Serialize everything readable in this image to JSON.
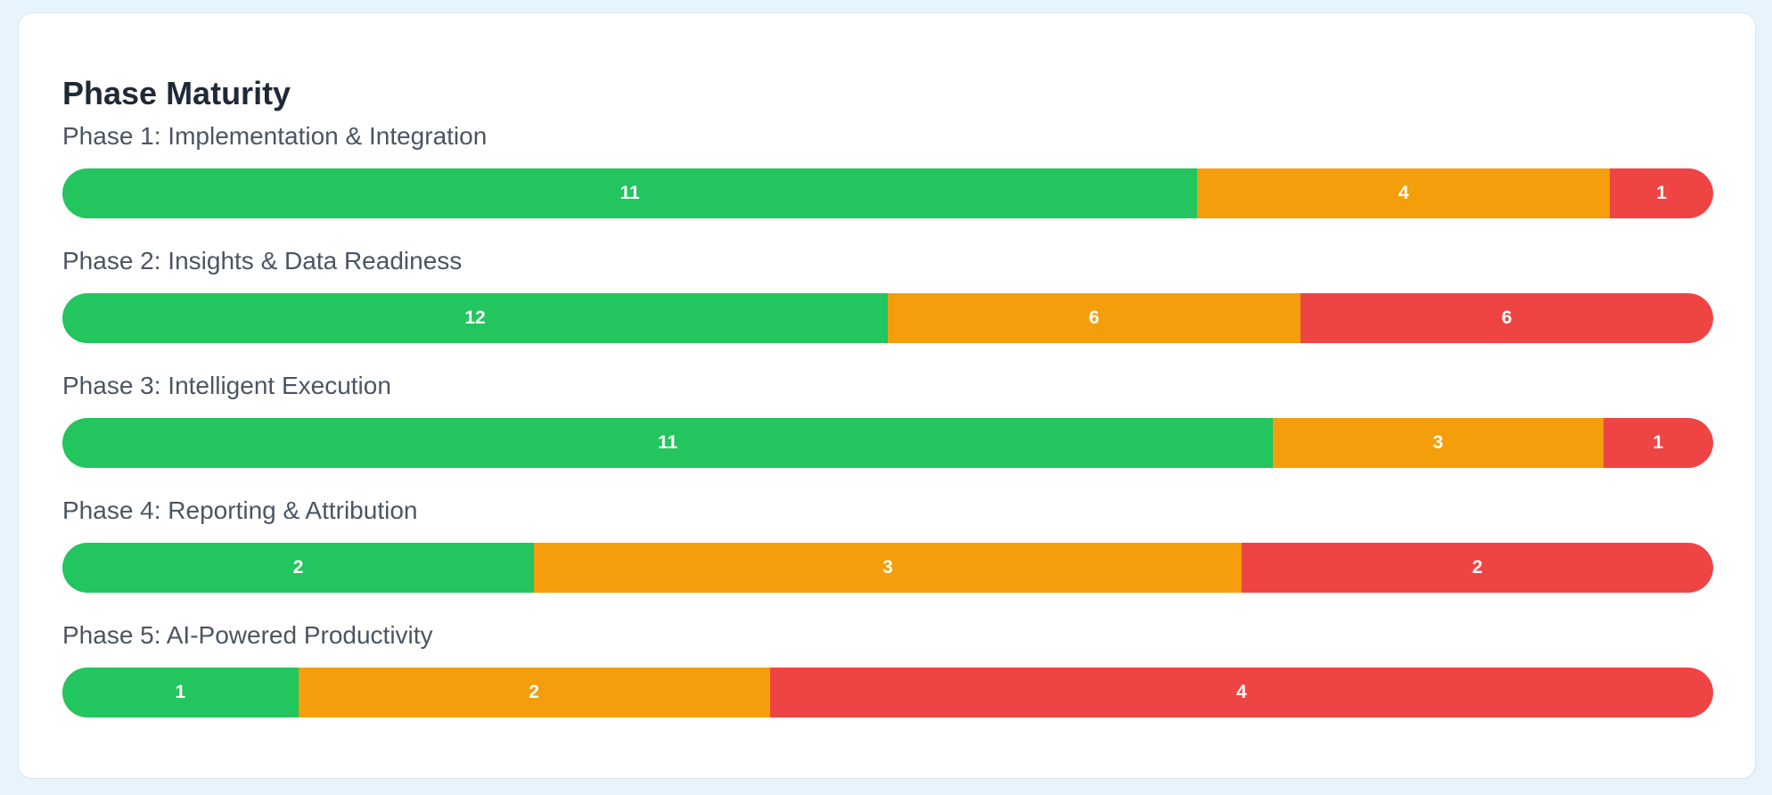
{
  "colors": {
    "background": "#e8f4fd",
    "card": "#ffffff",
    "title": "#1f2937",
    "label": "#4b5563",
    "green": "#22c55e",
    "amber": "#f59e0b",
    "red": "#ef4444"
  },
  "card": {
    "title": "Phase Maturity"
  },
  "chart_data": {
    "type": "bar",
    "orientation": "horizontal",
    "stacked": true,
    "normalized": true,
    "title": "Phase Maturity",
    "xlabel": "",
    "ylabel": "",
    "grid": false,
    "legend": "none",
    "categories": [
      "Phase 1: Implementation & Integration",
      "Phase 2: Insights & Data Readiness",
      "Phase 3: Intelligent Execution",
      "Phase 4: Reporting & Attribution",
      "Phase 5: AI-Powered Productivity"
    ],
    "series": [
      {
        "color": "#22c55e",
        "values": [
          11,
          12,
          11,
          2,
          1
        ]
      },
      {
        "color": "#f59e0b",
        "values": [
          4,
          6,
          3,
          3,
          2
        ]
      },
      {
        "color": "#ef4444",
        "values": [
          1,
          6,
          1,
          2,
          4
        ]
      }
    ]
  }
}
